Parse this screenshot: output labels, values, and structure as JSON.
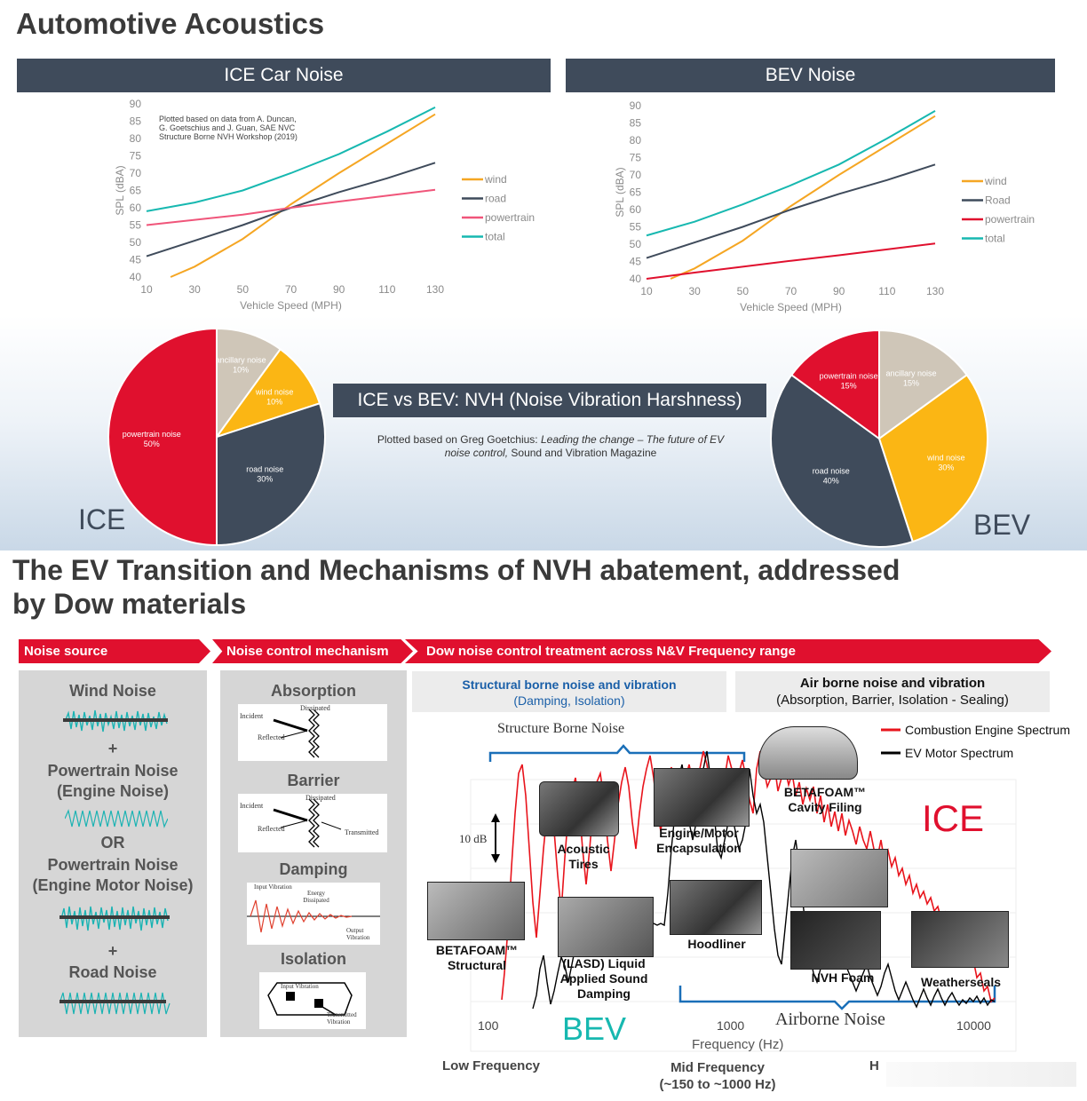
{
  "page_title": "Automotive Acoustics",
  "ice_header": "ICE Car Noise",
  "bev_header": "BEV Noise",
  "nvh_banner": "ICE vs BEV: NVH (Noise Vibration Harshness)",
  "nvh_source": {
    "prefix": "Plotted based on Greg Goetchius: ",
    "italic": "Leading the change – The future of EV noise control,",
    "suffix": " Sound and Vibration Magazine"
  },
  "ice_label": "ICE",
  "bev_label": "BEV",
  "section2_title": [
    "The EV Transition and Mechanisms of NVH abatement, addressed",
    "by Dow materials"
  ],
  "arrows": {
    "source": "Noise source",
    "mechanism": "Noise control mechanism",
    "treatment": "Dow noise control treatment across N&V Frequency range"
  },
  "noise_sources": {
    "wind": "Wind Noise",
    "plus1": "+",
    "pt1": [
      "Powertrain Noise",
      "(Engine Noise)"
    ],
    "or": "OR",
    "pt2": [
      "Powertrain Noise",
      "(Engine Motor Noise)"
    ],
    "plus2": "+",
    "road": "Road Noise"
  },
  "mechanisms": {
    "absorption": "Absorption",
    "barrier": "Barrier",
    "damping": "Damping",
    "isolation": "Isolation",
    "abs_labels": [
      "Incident",
      "Dissipated",
      "Reflected"
    ],
    "bar_labels": [
      "Incident",
      "Dissipated",
      "Reflected",
      "Transmitted"
    ],
    "damp_labels": [
      "Input Vibration",
      "Energy Dissipated",
      "Output Vibration"
    ],
    "iso_labels": [
      "Input Vibration",
      "Transmitted Vibration"
    ]
  },
  "treatment": {
    "structural_title": "Structural borne noise and vibration",
    "structural_sub": "(Damping, Isolation)",
    "airborne_title": "Air borne noise and vibration",
    "airborne_sub": "(Absorption, Barrier, Isolation - Sealing)",
    "structure_borne_label": "Structure Borne Noise",
    "airborne_label": "Airborne Noise",
    "ten_db": "10 dB",
    "legend": [
      "Combustion Engine Spectrum",
      "EV Motor Spectrum"
    ],
    "legend_colors": [
      "#e8141c",
      "#000000"
    ],
    "ice_big": "ICE",
    "bev_big": "BEV",
    "x_ticks": [
      "100",
      "1000",
      "10000"
    ],
    "x_label": "Frequency (Hz)",
    "products": {
      "acoustic_tires": [
        "Acoustic",
        "Tires"
      ],
      "engine_encap": [
        "Engine/Motor",
        "Encapsulation"
      ],
      "betafoam_cavity": [
        "BETAFOAM™",
        "Cavity Filing"
      ],
      "betafoam_struct": [
        "BETAFOAM™",
        "Structural"
      ],
      "lasd": [
        "(LASD) Liquid",
        "Applied Sound",
        "Damping"
      ],
      "hoodliner": "Hoodliner",
      "nvh_foam": "NVH Foam",
      "weatherseals": "Weatherseals"
    },
    "bands": {
      "low": "Low Frequency",
      "mid": [
        "Mid Frequency",
        "(~150 to ~1000 Hz)"
      ],
      "high": "H"
    }
  },
  "chart_data": [
    {
      "type": "line",
      "id": "ice-line",
      "title": "",
      "xlabel": "Vehicle Speed (MPH)",
      "ylabel": "SPL (dBA)",
      "xlim": [
        10,
        130
      ],
      "ylim": [
        40,
        90
      ],
      "x_ticks": [
        10,
        30,
        50,
        70,
        90,
        110,
        130
      ],
      "y_ticks": [
        40,
        45,
        50,
        55,
        60,
        65,
        70,
        75,
        80,
        85,
        90
      ],
      "annotation": [
        "Plotted based on data from A. Duncan,",
        "G. Goetschius and J. Guan, SAE NVC",
        "Structure  Borne NVH Workshop (2019)"
      ],
      "grid": false,
      "legend_position": "right",
      "series": [
        {
          "name": "wind",
          "color": "#f5a623",
          "x": [
            20,
            30,
            50,
            70,
            90,
            110,
            130
          ],
          "values": [
            40,
            43,
            51,
            61,
            70,
            78.5,
            87
          ]
        },
        {
          "name": "road",
          "color": "#3f4b5b",
          "x": [
            10,
            30,
            50,
            70,
            90,
            110,
            130
          ],
          "values": [
            46,
            50.5,
            55,
            60,
            64.5,
            68.5,
            73
          ]
        },
        {
          "name": "powertrain",
          "color": "#f0557a",
          "x": [
            10,
            30,
            50,
            70,
            90,
            110,
            130
          ],
          "values": [
            55,
            56.5,
            58,
            60,
            61.8,
            63.5,
            65.2
          ]
        },
        {
          "name": "total",
          "color": "#17b8b0",
          "x": [
            10,
            30,
            50,
            70,
            90,
            110,
            130
          ],
          "values": [
            59,
            61.5,
            65,
            70,
            75.5,
            82,
            89
          ]
        }
      ]
    },
    {
      "type": "line",
      "id": "bev-line",
      "title": "",
      "xlabel": "Vehicle Speed (MPH)",
      "ylabel": "SPL (dBA)",
      "xlim": [
        10,
        130
      ],
      "ylim": [
        40,
        90
      ],
      "x_ticks": [
        10,
        30,
        50,
        70,
        90,
        110,
        130
      ],
      "y_ticks": [
        40,
        45,
        50,
        55,
        60,
        65,
        70,
        75,
        80,
        85,
        90
      ],
      "grid": false,
      "legend_position": "right",
      "series": [
        {
          "name": "wind",
          "color": "#f5a623",
          "x": [
            20,
            30,
            50,
            70,
            90,
            110,
            130
          ],
          "values": [
            40,
            43,
            51,
            61,
            70,
            78.5,
            87
          ]
        },
        {
          "name": "Road",
          "color": "#3f4b5b",
          "x": [
            10,
            30,
            50,
            70,
            90,
            110,
            130
          ],
          "values": [
            46,
            50.5,
            55,
            60,
            64.5,
            68.5,
            73
          ]
        },
        {
          "name": "powertrain",
          "color": "#e0102e",
          "x": [
            10,
            30,
            50,
            70,
            90,
            110,
            130
          ],
          "values": [
            40,
            41.8,
            43.5,
            45.2,
            46.8,
            48.5,
            50.2
          ]
        },
        {
          "name": "total",
          "color": "#17b8b0",
          "x": [
            10,
            30,
            50,
            70,
            90,
            110,
            130
          ],
          "values": [
            52.5,
            56.5,
            61.5,
            67,
            73,
            80.5,
            88.5
          ]
        }
      ]
    },
    {
      "type": "pie",
      "id": "ice-pie",
      "slices": [
        {
          "label": "ancillary noise",
          "value": 10,
          "pct": "10%",
          "color": "#cfc6b8"
        },
        {
          "label": "wind noise",
          "value": 10,
          "pct": "10%",
          "color": "#fbb614"
        },
        {
          "label": "road noise",
          "value": 30,
          "pct": "30%",
          "color": "#3f4b5b"
        },
        {
          "label": "powertrain noise",
          "value": 50,
          "pct": "50%",
          "color": "#e0102e"
        }
      ]
    },
    {
      "type": "pie",
      "id": "bev-pie",
      "slices": [
        {
          "label": "ancillary noise",
          "value": 15,
          "pct": "15%",
          "color": "#cfc6b8"
        },
        {
          "label": "wind noise",
          "value": 30,
          "pct": "30%",
          "color": "#fbb614"
        },
        {
          "label": "road noise",
          "value": 40,
          "pct": "40%",
          "color": "#3f4b5b"
        },
        {
          "label": "powertrain noise",
          "value": 15,
          "pct": "15%",
          "color": "#e0102e"
        }
      ]
    }
  ]
}
